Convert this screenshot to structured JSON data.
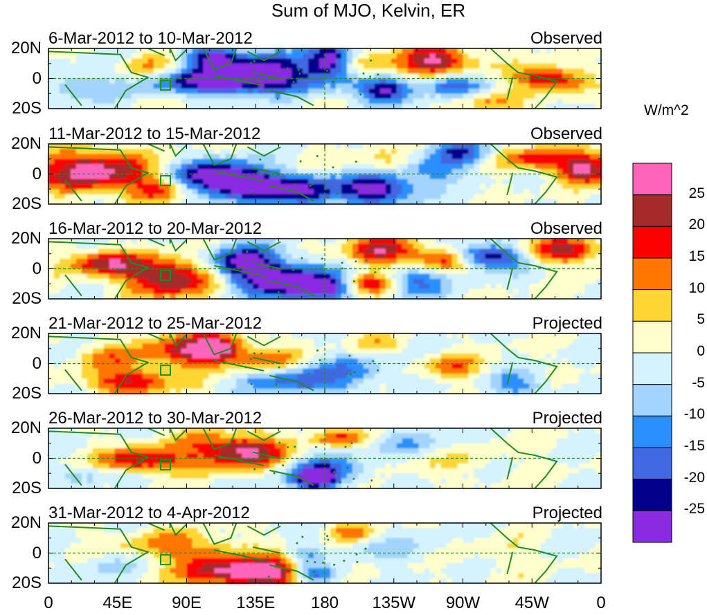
{
  "figure": {
    "title": "Sum of MJO, Kelvin, ER",
    "panels": [
      {
        "date_range": "6-Mar-2012 to 10-Mar-2012",
        "kind": "Observed"
      },
      {
        "date_range": "11-Mar-2012 to 15-Mar-2012",
        "kind": "Observed"
      },
      {
        "date_range": "16-Mar-2012 to 20-Mar-2012",
        "kind": "Observed"
      },
      {
        "date_range": "21-Mar-2012 to 25-Mar-2012",
        "kind": "Projected"
      },
      {
        "date_range": "26-Mar-2012 to 30-Mar-2012",
        "kind": "Projected"
      },
      {
        "date_range": "31-Mar-2012 to 4-Apr-2012",
        "kind": "Projected"
      }
    ],
    "lat_labels": [
      "20N",
      "0",
      "20S"
    ],
    "lon_labels": [
      "0",
      "45E",
      "90E",
      "135E",
      "180",
      "135W",
      "90W",
      "45W",
      "0"
    ],
    "colorbar": {
      "units": "W/m^2",
      "levels": [
        "25",
        "20",
        "15",
        "10",
        "5",
        "0",
        "-5",
        "-10",
        "-15",
        "-20",
        "-25"
      ],
      "colors": [
        "#ff66bb",
        "#a52a2a",
        "#ff0000",
        "#ff7700",
        "#ffd633",
        "#ffffcc",
        "#d4f2ff",
        "#a3d4ff",
        "#2b90ff",
        "#4169e1",
        "#00008b",
        "#8a2be2"
      ]
    }
  }
}
